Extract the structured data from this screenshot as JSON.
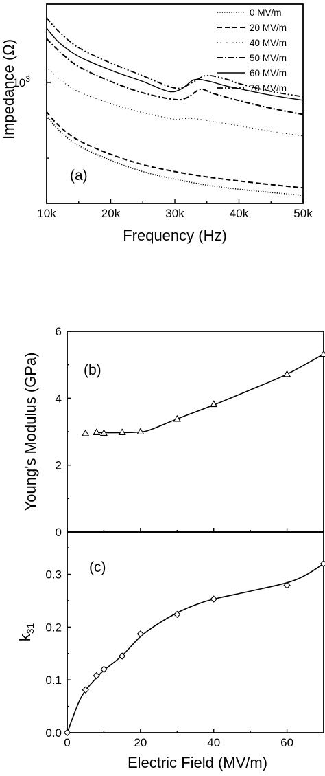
{
  "chart_data": [
    {
      "id": "a",
      "type": "line",
      "panel_label": "(a)",
      "title": "",
      "xlabel": "Frequency (Hz)",
      "ylabel": "Impedance (Ω)",
      "x_unit": "Hz",
      "xlim": [
        10000,
        50000
      ],
      "y_scale": "log",
      "ylim": [
        700,
        1260
      ],
      "x_ticks": [
        {
          "value": 10000,
          "label": "10k"
        },
        {
          "value": 20000,
          "label": "20k"
        },
        {
          "value": 30000,
          "label": "30k"
        },
        {
          "value": 40000,
          "label": "40k"
        },
        {
          "value": 50000,
          "label": "50k"
        }
      ],
      "y_ticks": [
        {
          "value": 1000,
          "label_base": "10",
          "label_exp": "3"
        }
      ],
      "legend": {
        "placement": "top-right"
      },
      "series": [
        {
          "name": "0 MV/m",
          "style": "dotted-dense",
          "x": [
            10000,
            12000,
            15000,
            20000,
            25000,
            30000,
            35000,
            40000,
            45000,
            50000
          ],
          "y": [
            907,
            867,
            830,
            795,
            769,
            752,
            739,
            730,
            723,
            717
          ]
        },
        {
          "name": "20 MV/m",
          "style": "dashed",
          "x": [
            10000,
            12000,
            15000,
            20000,
            25000,
            30000,
            35000,
            40000,
            45000,
            50000
          ],
          "y": [
            917,
            879,
            843,
            809,
            785,
            769,
            757,
            748,
            740,
            733
          ]
        },
        {
          "name": "40 MV/m",
          "style": "dotted-sparse",
          "x": [
            10000,
            12000,
            15000,
            20000,
            25000,
            30000,
            31000,
            33000,
            35000,
            40000,
            45000,
            50000
          ],
          "y": [
            1045,
            1010,
            973,
            940,
            915,
            897,
            899,
            899,
            894,
            880,
            866,
            854
          ]
        },
        {
          "name": "50 MV/m",
          "style": "dashdot",
          "x": [
            10000,
            12000,
            15000,
            20000,
            25000,
            30000,
            32000,
            34000,
            36000,
            40000,
            45000,
            50000
          ],
          "y": [
            1138,
            1096,
            1048,
            1003,
            970,
            951,
            957,
            980,
            968,
            948,
            927,
            910
          ]
        },
        {
          "name": "60 MV/m",
          "style": "solid",
          "x": [
            10000,
            12000,
            15000,
            20000,
            25000,
            29000,
            31000,
            33000,
            35000,
            38000,
            40000,
            45000,
            50000
          ],
          "y": [
            1174,
            1124,
            1080,
            1037,
            1003,
            974,
            981,
            1008,
            1005,
            990,
            982,
            963,
            949
          ]
        },
        {
          "name": "70 MV/m",
          "style": "dashdotdot",
          "x": [
            10000,
            12000,
            15000,
            20000,
            25000,
            29000,
            31000,
            33000,
            35000,
            38000,
            40000,
            45000,
            50000
          ],
          "y": [
            1210,
            1160,
            1108,
            1059,
            1020,
            989,
            984,
            1003,
            1021,
            1010,
            997,
            974,
            959
          ]
        }
      ]
    },
    {
      "id": "b",
      "type": "scatter",
      "panel_label": "(b)",
      "title": "",
      "xlabel": "",
      "ylabel": "Young's Modulus (GPa)",
      "xlim": [
        0,
        70
      ],
      "ylim": [
        0,
        6
      ],
      "x_ticks": [
        0,
        20,
        40,
        60
      ],
      "y_ticks": [
        0,
        2,
        4,
        6
      ],
      "marker": "triangle",
      "points": {
        "x": [
          5,
          8,
          10,
          15,
          20,
          30,
          40,
          60,
          70
        ],
        "y": [
          2.95,
          2.98,
          2.96,
          2.98,
          3.0,
          3.38,
          3.82,
          4.72,
          5.32
        ]
      },
      "fit_line": {
        "x": [
          8,
          15,
          20,
          22,
          26,
          30,
          40,
          50,
          60,
          70
        ],
        "y": [
          2.97,
          2.97,
          2.99,
          3.03,
          3.2,
          3.38,
          3.8,
          4.25,
          4.72,
          5.32
        ]
      }
    },
    {
      "id": "c",
      "type": "scatter",
      "panel_label": "(c)",
      "title": "",
      "xlabel": "Electric Field (MV/m)",
      "ylabel_main": "k",
      "ylabel_sub": "31",
      "xlim": [
        0,
        70
      ],
      "ylim": [
        0,
        0.38
      ],
      "x_ticks": [
        0,
        20,
        40,
        60
      ],
      "y_ticks": [
        {
          "value": 0,
          "label": "0.0"
        },
        {
          "value": 0.1,
          "label": "0.1"
        },
        {
          "value": 0.2,
          "label": "0.2"
        },
        {
          "value": 0.3,
          "label": "0.3"
        }
      ],
      "marker": "diamond",
      "points": {
        "x": [
          0,
          5,
          8,
          10,
          15,
          20,
          30,
          40,
          60,
          70
        ],
        "y": [
          0.0,
          0.081,
          0.108,
          0.12,
          0.145,
          0.187,
          0.224,
          0.253,
          0.279,
          0.32
        ]
      },
      "fit_line": {
        "x": [
          0,
          3,
          5,
          8,
          10,
          15,
          20,
          25,
          30,
          35,
          40,
          50,
          60,
          65,
          70
        ],
        "y": [
          0.0,
          0.055,
          0.08,
          0.104,
          0.118,
          0.146,
          0.182,
          0.207,
          0.227,
          0.242,
          0.253,
          0.268,
          0.284,
          0.298,
          0.32
        ]
      }
    }
  ]
}
